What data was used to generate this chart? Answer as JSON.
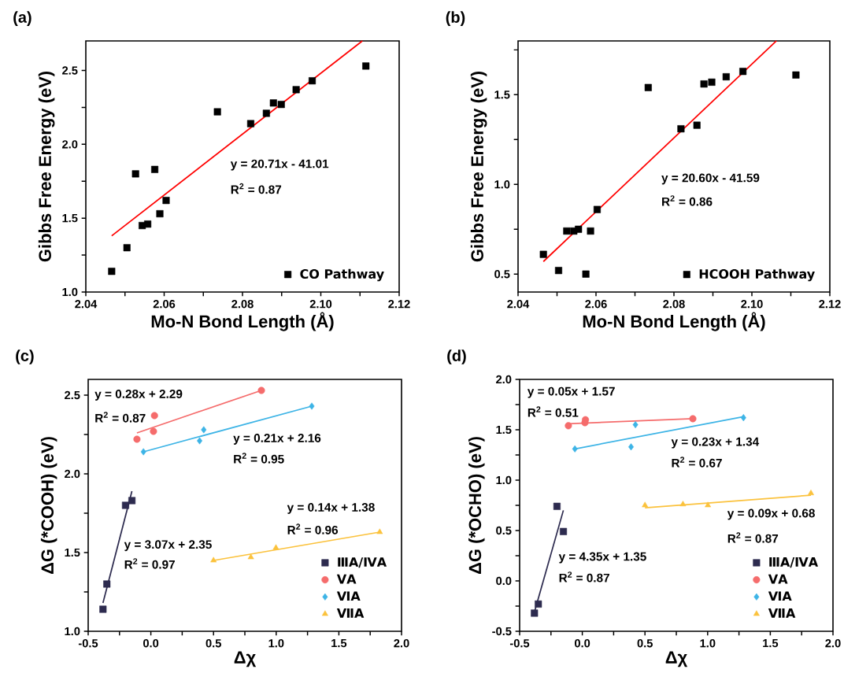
{
  "chart_data": [
    {
      "type": "scatter",
      "title": "(a)",
      "xlabel": "Mo-N Bond Length (Å)",
      "ylabel": "Gibbs Free Energy (eV)",
      "legend": "bottom right",
      "xlim": [
        2.04,
        2.12
      ],
      "ylim": [
        1.0,
        2.7
      ],
      "xticks": [
        2.04,
        {
          "value": 2.05,
          "label": null
        },
        2.06,
        {
          "value": 2.07,
          "label": null
        },
        2.08,
        {
          "value": 2.09,
          "label": null
        },
        {
          "value": 2.1,
          "label": "2.10"
        },
        {
          "value": 2.11,
          "label": null
        },
        2.12
      ],
      "yticks": [
        {
          "value": 1.0,
          "label": "1.0"
        },
        {
          "value": 1.25,
          "label": null
        },
        1.5,
        {
          "value": 1.75,
          "label": null
        },
        {
          "value": 2.0,
          "label": "2.0"
        },
        {
          "value": 2.25,
          "label": null
        },
        2.5
      ],
      "series": [
        {
          "name": "CO Pathway",
          "marker": "square",
          "color": "#000000",
          "x": [
            2.0466,
            2.0505,
            2.0527,
            2.0544,
            2.0558,
            2.0576,
            2.0589,
            2.0605,
            2.0736,
            2.0821,
            2.0861,
            2.0879,
            2.0899,
            2.0937,
            2.0978,
            2.1115
          ],
          "values": [
            1.14,
            1.3,
            1.8,
            1.45,
            1.46,
            1.83,
            1.53,
            1.62,
            2.22,
            2.14,
            2.21,
            2.28,
            2.27,
            2.37,
            2.43,
            2.53
          ]
        },
        {
          "type": "line",
          "marker": "none",
          "color": "#ff0000",
          "x": [
            2.0466,
            2.1106
          ],
          "values": [
            1.38,
            2.7
          ]
        }
      ],
      "annotations": [
        "y = 20.71x - 41.01",
        "R$^{2}$ = 0.87"
      ]
    },
    {
      "type": "scatter",
      "title": "(b)",
      "xlabel": "Mo-N Bond Length (Å)",
      "ylabel": "Gibbs Free Energy (eV)",
      "legend": "bottom right",
      "xlim": [
        2.04,
        2.12
      ],
      "ylim": [
        0.4,
        1.8
      ],
      "xticks": [
        2.04,
        {
          "value": 2.05,
          "label": null
        },
        2.06,
        {
          "value": 2.07,
          "label": null
        },
        2.08,
        {
          "value": 2.09,
          "label": null
        },
        {
          "value": 2.1,
          "label": "2.10"
        },
        {
          "value": 2.11,
          "label": null
        },
        2.12
      ],
      "yticks": [
        0.5,
        {
          "value": 0.75,
          "label": null
        },
        {
          "value": 1.0,
          "label": "1.0"
        },
        {
          "value": 1.25,
          "label": null
        },
        1.5,
        {
          "value": 1.75,
          "label": null
        }
      ],
      "series": [
        {
          "name": "HCOOH Pathway",
          "marker": "square",
          "color": "#000000",
          "x": [
            2.0465,
            2.0504,
            2.0525,
            2.0543,
            2.0555,
            2.0574,
            2.0586,
            2.0603,
            2.0734,
            2.0818,
            2.0859,
            2.0877,
            2.0897,
            2.0934,
            2.0977,
            2.1113
          ],
          "values": [
            0.61,
            0.52,
            0.74,
            0.74,
            0.75,
            0.5,
            0.74,
            0.86,
            1.54,
            1.31,
            1.33,
            1.56,
            1.57,
            1.6,
            1.63,
            1.61
          ]
        },
        {
          "type": "line",
          "marker": "none",
          "color": "#ff0000",
          "x": [
            2.0465,
            2.1063
          ],
          "values": [
            0.57,
            1.8
          ]
        }
      ],
      "annotations": [
        "y = 20.60x - 41.59",
        "R$^{2}$ = 0.86"
      ]
    },
    {
      "type": "scatter",
      "title": "(c)",
      "xlabel": "Δχ",
      "ylabel": "ΔG (*COOH) (eV)",
      "legend": "bottom right",
      "xlim": [
        -0.5,
        2.0
      ],
      "ylim": [
        1.0,
        2.6
      ],
      "xticks": [
        -0.5,
        {
          "value": -0.25,
          "label": null
        },
        {
          "value": 0.0,
          "label": "0.0"
        },
        {
          "value": 0.25,
          "label": null
        },
        0.5,
        {
          "value": 0.75,
          "label": null
        },
        {
          "value": 1.0,
          "label": "1.0"
        },
        {
          "value": 1.25,
          "label": null
        },
        1.5,
        {
          "value": 1.75,
          "label": null
        },
        {
          "value": 2.0,
          "label": "2.0"
        }
      ],
      "yticks": [
        {
          "value": 1.0,
          "label": "1.0"
        },
        {
          "value": 1.25,
          "label": null
        },
        1.5,
        {
          "value": 1.75,
          "label": null
        },
        {
          "value": 2.0,
          "label": "2.0"
        },
        {
          "value": 2.25,
          "label": null
        },
        2.5
      ],
      "series": [
        {
          "name": "ⅢA/ⅣA",
          "marker": "square",
          "color": "#2d2b4f",
          "x": [
            -0.382,
            -0.351,
            -0.202,
            -0.151
          ],
          "values": [
            1.14,
            1.3,
            1.8,
            1.83
          ]
        },
        {
          "name": "ⅤA",
          "marker": "circle",
          "color": "#f56c6c",
          "x": [
            -0.111,
            0.021,
            0.029,
            0.882
          ],
          "values": [
            2.22,
            2.27,
            2.37,
            2.53
          ]
        },
        {
          "name": "ⅥA",
          "marker": "diamond",
          "color": "#3db4e6",
          "x": [
            -0.059,
            0.389,
            0.422,
            1.284
          ],
          "values": [
            2.14,
            2.21,
            2.28,
            2.43
          ]
        },
        {
          "name": "ⅦA",
          "marker": "triangle",
          "color": "#fbc23d",
          "x": [
            0.5,
            0.798,
            0.998,
            1.826
          ],
          "values": [
            1.45,
            1.47,
            1.53,
            1.63
          ]
        },
        {
          "type": "line",
          "marker": "none",
          "color": "#2d2b4f",
          "x": [
            -0.382,
            -0.151
          ],
          "values": [
            1.18,
            1.89
          ]
        },
        {
          "type": "line",
          "marker": "none",
          "color": "#f56c6c",
          "x": [
            -0.111,
            0.882
          ],
          "values": [
            2.26,
            2.53
          ]
        },
        {
          "type": "line",
          "marker": "none",
          "color": "#3db4e6",
          "x": [
            -0.059,
            1.284
          ],
          "values": [
            2.14,
            2.43
          ]
        },
        {
          "type": "line",
          "marker": "none",
          "color": "#fbc23d",
          "x": [
            0.5,
            1.826
          ],
          "values": [
            1.45,
            1.63
          ]
        }
      ],
      "annotations": [
        "y = 0.28x + 2.29",
        "R$^{2}$ = 0.87",
        "y = 0.21x + 2.16",
        "R$^{2}$ = 0.95",
        "y = 0.14x + 1.38",
        "R$^{2}$ = 0.96",
        "y = 3.07x + 2.35",
        "R$^{2}$ = 0.97"
      ]
    },
    {
      "type": "scatter",
      "title": "(d)",
      "xlabel": "Δχ",
      "ylabel": "ΔG (*OCHO) (eV)",
      "legend": "bottom right",
      "xlim": [
        -0.5,
        2.0
      ],
      "ylim": [
        -0.5,
        2.0
      ],
      "xticks": [
        -0.5,
        {
          "value": -0.25,
          "label": null
        },
        {
          "value": 0.0,
          "label": "0.0"
        },
        {
          "value": 0.25,
          "label": null
        },
        0.5,
        {
          "value": 0.75,
          "label": null
        },
        {
          "value": 1.0,
          "label": "1.0"
        },
        {
          "value": 1.25,
          "label": null
        },
        1.5,
        {
          "value": 1.75,
          "label": null
        },
        {
          "value": 2.0,
          "label": "2.0"
        }
      ],
      "yticks": [
        -0.5,
        {
          "value": -0.25,
          "label": null
        },
        {
          "value": 0.0,
          "label": "0.0"
        },
        {
          "value": 0.25,
          "label": null
        },
        0.5,
        {
          "value": 0.75,
          "label": null
        },
        {
          "value": 1.0,
          "label": "1.0"
        },
        {
          "value": 1.25,
          "label": null
        },
        1.5,
        {
          "value": 1.75,
          "label": null
        },
        {
          "value": 2.0,
          "label": "2.0"
        }
      ],
      "series": [
        {
          "name": "ⅢA/ⅣA",
          "marker": "square",
          "color": "#2d2b4f",
          "x": [
            -0.382,
            -0.351,
            -0.202,
            -0.151
          ],
          "values": [
            -0.32,
            -0.23,
            0.74,
            0.49
          ]
        },
        {
          "name": "ⅤA",
          "marker": "circle",
          "color": "#f56c6c",
          "x": [
            -0.111,
            0.021,
            0.025,
            0.882
          ],
          "values": [
            1.54,
            1.57,
            1.6,
            1.61
          ]
        },
        {
          "name": "ⅥA",
          "marker": "diamond",
          "color": "#3db4e6",
          "x": [
            -0.059,
            0.389,
            0.424,
            1.286
          ],
          "values": [
            1.31,
            1.33,
            1.55,
            1.62
          ]
        },
        {
          "name": "ⅦA",
          "marker": "triangle",
          "color": "#fbc23d",
          "x": [
            0.5,
            0.803,
            1.002,
            1.824
          ],
          "values": [
            0.75,
            0.76,
            0.75,
            0.87
          ]
        },
        {
          "type": "line",
          "marker": "none",
          "color": "#2d2b4f",
          "x": [
            -0.382,
            -0.151
          ],
          "values": [
            -0.31,
            0.7
          ]
        },
        {
          "type": "line",
          "marker": "none",
          "color": "#f56c6c",
          "x": [
            -0.111,
            0.882
          ],
          "values": [
            1.56,
            1.61
          ]
        },
        {
          "type": "line",
          "marker": "none",
          "color": "#3db4e6",
          "x": [
            -0.059,
            1.286
          ],
          "values": [
            1.31,
            1.63
          ]
        },
        {
          "type": "line",
          "marker": "none",
          "color": "#fbc23d",
          "x": [
            0.5,
            1.824
          ],
          "values": [
            0.725,
            0.85
          ]
        }
      ],
      "annotations": [
        "y = 0.05x + 1.57",
        "R$^{2}$ = 0.51",
        "y = 0.23x + 1.34",
        "R$^{2}$ = 0.67",
        "y = 0.09x + 0.68",
        "R$^{2}$ = 0.87",
        "y = 4.35x + 1.35",
        "R$^{2}$ = 0.87"
      ]
    }
  ]
}
